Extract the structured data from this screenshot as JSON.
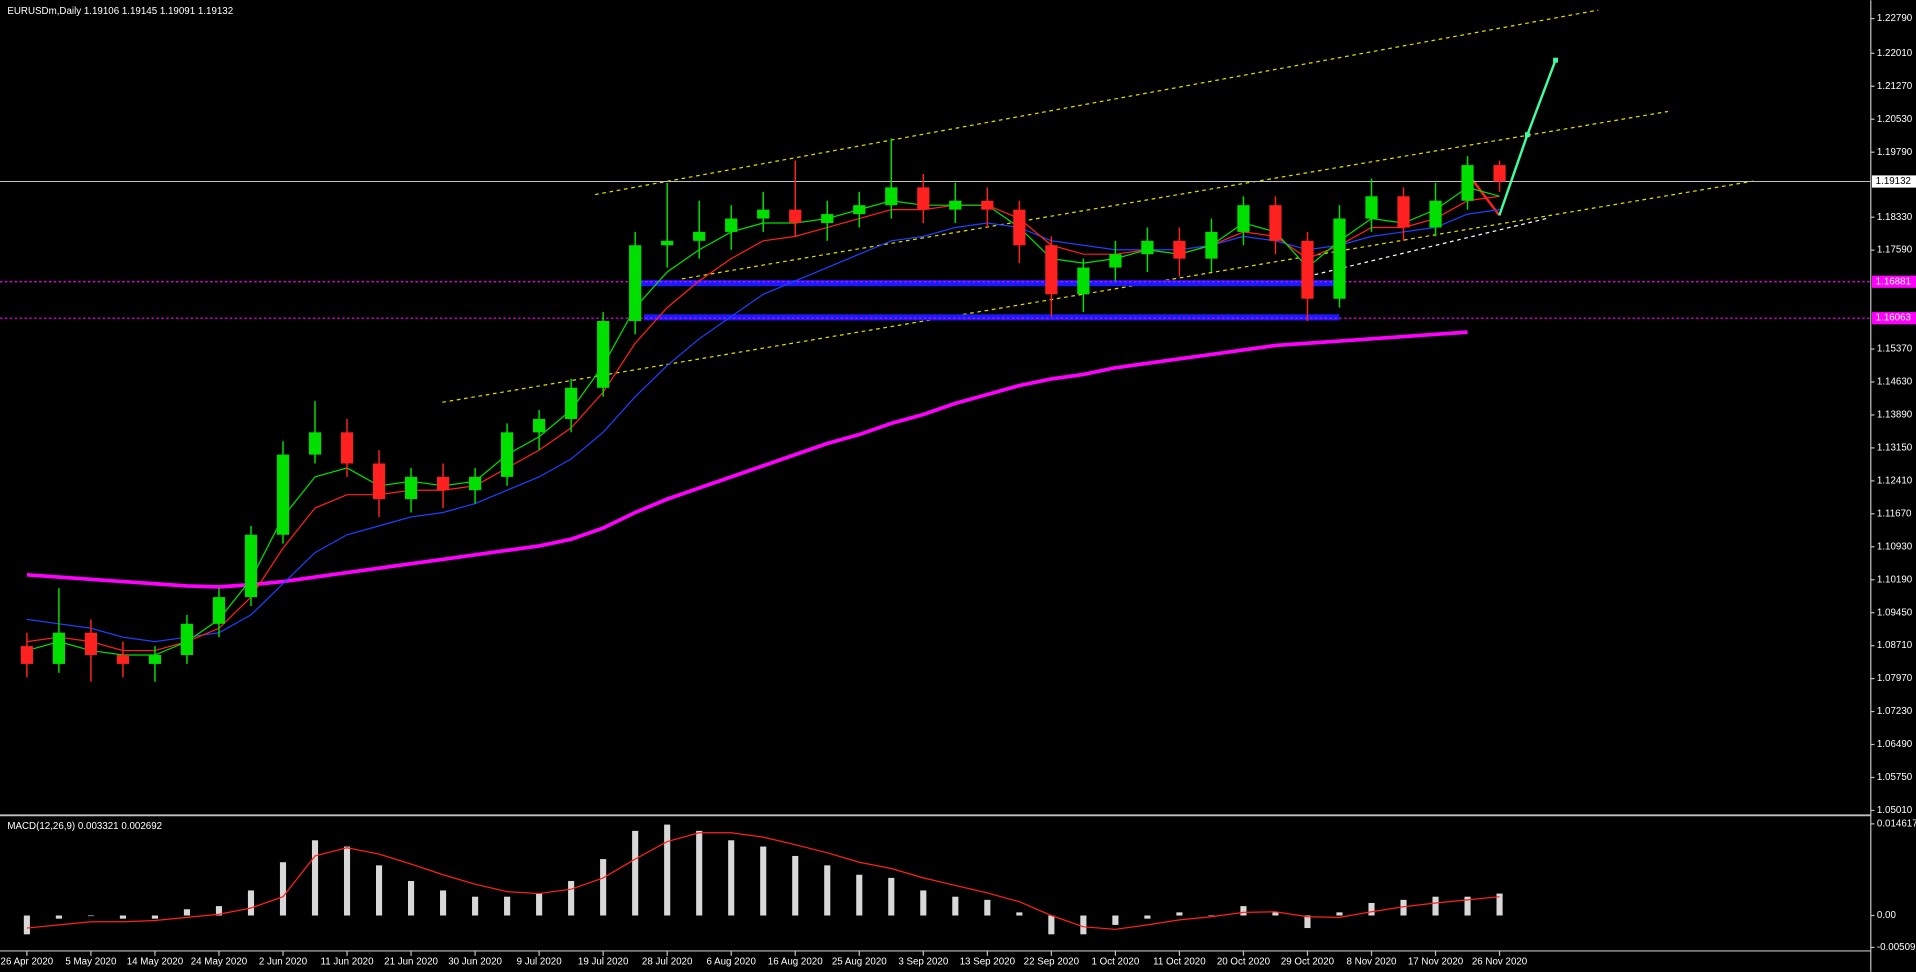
{
  "chart_data": {
    "type": "candlestick",
    "title": "EURUSDm,Daily  1.19106 1.19145 1.19091 1.19132",
    "categories": [
      "26 Apr 2020",
      null,
      "5 May 2020",
      null,
      "14 May 2020",
      null,
      "24 May 2020",
      null,
      "2 Jun 2020",
      null,
      "11 Jun 2020",
      null,
      "21 Jun 2020",
      null,
      "30 Jun 2020",
      null,
      "9 Jul 2020",
      null,
      "19 Jul 2020",
      null,
      "28 Jul 2020",
      null,
      "6 Aug 2020",
      null,
      "16 Aug 2020",
      null,
      "25 Aug 2020",
      null,
      "3 Sep 2020",
      null,
      "13 Sep 2020",
      null,
      "22 Sep 2020",
      null,
      "1 Oct 2020",
      null,
      "11 Oct 2020",
      null,
      "20 Oct 2020",
      null,
      "29 Oct 2020",
      null,
      "8 Nov 2020",
      null,
      "17 Nov 2020",
      null,
      "26 Nov 2020"
    ],
    "open": [
      1.087,
      1.083,
      1.09,
      1.085,
      1.083,
      1.085,
      1.092,
      1.098,
      1.112,
      1.13,
      1.135,
      1.128,
      1.12,
      1.125,
      1.122,
      1.125,
      1.135,
      1.138,
      1.145,
      1.16,
      1.177,
      1.178,
      1.18,
      1.183,
      1.185,
      1.182,
      1.184,
      1.186,
      1.19,
      1.185,
      1.187,
      1.185,
      1.177,
      1.166,
      1.172,
      1.175,
      1.178,
      1.174,
      1.18,
      1.186,
      1.178,
      1.165,
      1.183,
      1.188,
      1.181,
      1.187,
      1.195
    ],
    "high": [
      1.09,
      1.1,
      1.093,
      1.088,
      1.087,
      1.094,
      1.1,
      1.114,
      1.133,
      1.142,
      1.138,
      1.131,
      1.127,
      1.128,
      1.127,
      1.137,
      1.14,
      1.147,
      1.162,
      1.18,
      1.191,
      1.187,
      1.186,
      1.189,
      1.196,
      1.187,
      1.189,
      1.201,
      1.193,
      1.191,
      1.19,
      1.187,
      1.179,
      1.174,
      1.178,
      1.181,
      1.181,
      1.183,
      1.188,
      1.188,
      1.18,
      1.186,
      1.192,
      1.19,
      1.191,
      1.197,
      1.196
    ],
    "low": [
      1.08,
      1.081,
      1.079,
      1.08,
      1.079,
      1.083,
      1.089,
      1.096,
      1.11,
      1.128,
      1.125,
      1.116,
      1.117,
      1.118,
      1.119,
      1.123,
      1.131,
      1.135,
      1.143,
      1.157,
      1.172,
      1.174,
      1.176,
      1.18,
      1.179,
      1.178,
      1.181,
      1.183,
      1.182,
      1.182,
      1.181,
      1.173,
      1.161,
      1.162,
      1.169,
      1.171,
      1.17,
      1.171,
      1.177,
      1.175,
      1.16,
      1.163,
      1.18,
      1.178,
      1.179,
      1.185,
      1.189
    ],
    "close": [
      1.083,
      1.09,
      1.085,
      1.083,
      1.085,
      1.092,
      1.098,
      1.112,
      1.13,
      1.135,
      1.128,
      1.12,
      1.125,
      1.122,
      1.125,
      1.135,
      1.138,
      1.145,
      1.16,
      1.177,
      1.178,
      1.18,
      1.183,
      1.185,
      1.182,
      1.184,
      1.186,
      1.19,
      1.185,
      1.187,
      1.185,
      1.177,
      1.166,
      1.172,
      1.175,
      1.178,
      1.174,
      1.18,
      1.186,
      1.178,
      1.165,
      1.183,
      1.188,
      1.181,
      1.187,
      1.195,
      1.1913
    ],
    "up_color": "#00e000",
    "down_color": "#ff2020",
    "overlays": [
      {
        "color": "#ff00ff",
        "width": 3,
        "values": [
          1.103,
          1.1025,
          1.102,
          1.1015,
          1.101,
          1.1005,
          1.1003,
          1.1008,
          1.1015,
          1.1025,
          1.1035,
          1.1045,
          1.1055,
          1.1065,
          1.1075,
          1.1085,
          1.1095,
          1.111,
          1.1135,
          1.117,
          1.12,
          1.1225,
          1.125,
          1.1275,
          1.13,
          1.1325,
          1.1345,
          1.137,
          1.139,
          1.1415,
          1.1435,
          1.1455,
          1.147,
          1.148,
          1.1495,
          1.1505,
          1.1515,
          1.1525,
          1.1535,
          1.1545,
          1.155,
          1.1555,
          1.156,
          1.1565,
          1.157,
          1.1575,
          null
        ]
      },
      {
        "color": "#2040ff",
        "width": 1,
        "values": [
          1.093,
          1.092,
          1.091,
          1.089,
          1.088,
          1.089,
          1.09,
          1.094,
          1.101,
          1.108,
          1.112,
          1.114,
          1.116,
          1.117,
          1.119,
          1.122,
          1.125,
          1.129,
          1.135,
          1.143,
          1.15,
          1.156,
          1.161,
          1.166,
          1.169,
          1.172,
          1.175,
          1.178,
          1.179,
          1.181,
          1.182,
          1.181,
          1.178,
          1.177,
          1.176,
          1.176,
          1.176,
          1.177,
          1.179,
          1.178,
          1.176,
          1.177,
          1.179,
          1.18,
          1.181,
          1.184,
          1.185
        ]
      },
      {
        "color": "#ff2020",
        "width": 1,
        "values": [
          1.088,
          1.089,
          1.088,
          1.086,
          1.086,
          1.088,
          1.091,
          1.098,
          1.109,
          1.118,
          1.121,
          1.121,
          1.122,
          1.122,
          1.123,
          1.127,
          1.131,
          1.136,
          1.144,
          1.155,
          1.163,
          1.169,
          1.174,
          1.178,
          1.179,
          1.181,
          1.183,
          1.185,
          1.185,
          1.186,
          1.186,
          1.183,
          1.177,
          1.175,
          1.175,
          1.176,
          1.175,
          1.177,
          1.18,
          1.179,
          1.174,
          1.177,
          1.181,
          1.181,
          1.183,
          1.187,
          1.188
        ]
      },
      {
        "color": "#00e000",
        "width": 1,
        "values": [
          1.086,
          1.088,
          1.086,
          1.085,
          1.085,
          1.088,
          1.093,
          1.102,
          1.116,
          1.125,
          1.127,
          1.123,
          1.124,
          1.123,
          1.124,
          1.13,
          1.134,
          1.14,
          1.15,
          1.163,
          1.171,
          1.176,
          1.18,
          1.182,
          1.182,
          1.183,
          1.185,
          1.187,
          1.186,
          1.186,
          1.186,
          1.181,
          1.174,
          1.173,
          1.174,
          1.176,
          1.175,
          1.177,
          1.182,
          1.18,
          1.172,
          1.178,
          1.183,
          1.182,
          1.185,
          1.19,
          1.188
        ]
      }
    ],
    "ylim": [
      1.04928,
      1.23201
    ],
    "yticks": [
      {
        "value": 1.2279,
        "label": "1.22790"
      },
      {
        "value": 1.2201,
        "label": "1.22010"
      },
      {
        "value": 1.2127,
        "label": "1.21270"
      },
      {
        "value": 1.2053,
        "label": "1.20530"
      },
      {
        "value": 1.1979,
        "label": "1.19790"
      },
      {
        "value": 1.1833,
        "label": "1.18330"
      },
      {
        "value": 1.1759,
        "label": "1.17590"
      },
      {
        "value": 1.1537,
        "label": "1.15370"
      },
      {
        "value": 1.1463,
        "label": "1.14630"
      },
      {
        "value": 1.1389,
        "label": "1.13890"
      },
      {
        "value": 1.1315,
        "label": "1.13150"
      },
      {
        "value": 1.1241,
        "label": "1.12410"
      },
      {
        "value": 1.1167,
        "label": "1.11670"
      },
      {
        "value": 1.1093,
        "label": "1.10930"
      },
      {
        "value": 1.1019,
        "label": "1.10190"
      },
      {
        "value": 1.0945,
        "label": "1.09450"
      },
      {
        "value": 1.0871,
        "label": "1.08710"
      },
      {
        "value": 1.0797,
        "label": "1.07970"
      },
      {
        "value": 1.0723,
        "label": "1.07230"
      },
      {
        "value": 1.0649,
        "label": "1.06490"
      },
      {
        "value": 1.0575,
        "label": "1.05750"
      },
      {
        "value": 1.0501,
        "label": "1.05010"
      }
    ],
    "price_line": {
      "value": 1.19132,
      "label": "1.19132",
      "color": "#c0c0c0"
    },
    "levels": [
      {
        "value": 1.16881,
        "label": "1.16881",
        "color": "#ff00ff"
      },
      {
        "value": 1.16063,
        "label": "1.16063",
        "color": "#ff00ff"
      }
    ],
    "macd": {
      "title": "MACD(12,26,9) 0.003321 0.002692",
      "histogram_color": "#d8d8d8",
      "signal_color": "#ff2020",
      "histogram": [
        -0.003,
        -0.0005,
        0.0,
        -0.0005,
        -0.0005,
        0.001,
        0.0015,
        0.004,
        0.0085,
        0.012,
        0.011,
        0.008,
        0.0055,
        0.004,
        0.003,
        0.003,
        0.0035,
        0.0055,
        0.009,
        0.0135,
        0.0145,
        0.0135,
        0.012,
        0.011,
        0.0095,
        0.008,
        0.0065,
        0.006,
        0.004,
        0.003,
        0.0025,
        0.0005,
        -0.003,
        -0.003,
        -0.0015,
        -0.0005,
        0.0005,
        0.0,
        0.0015,
        0.0005,
        -0.002,
        0.0005,
        0.002,
        0.0025,
        0.003,
        0.003,
        0.0035
      ],
      "signal": [
        -0.002,
        -0.0015,
        -0.001,
        -0.001,
        -0.0008,
        -0.0003,
        0.0002,
        0.0012,
        0.003,
        0.0095,
        0.0108,
        0.0098,
        0.0082,
        0.0065,
        0.005,
        0.0038,
        0.0035,
        0.0042,
        0.006,
        0.009,
        0.0118,
        0.0132,
        0.0132,
        0.0125,
        0.0113,
        0.01,
        0.0085,
        0.0075,
        0.006,
        0.0048,
        0.0036,
        0.0022,
        0.0,
        -0.0018,
        -0.0022,
        -0.0015,
        -0.0007,
        -0.0002,
        0.0005,
        0.0006,
        -0.0002,
        -0.0003,
        0.0006,
        0.0014,
        0.002,
        0.0025,
        0.003
      ],
      "ylim": [
        -0.005457,
        0.015592
      ],
      "yticks": [
        0.014617,
        {
          "value": 0,
          "label": "0.00"
        },
        -0.00509
      ]
    }
  }
}
